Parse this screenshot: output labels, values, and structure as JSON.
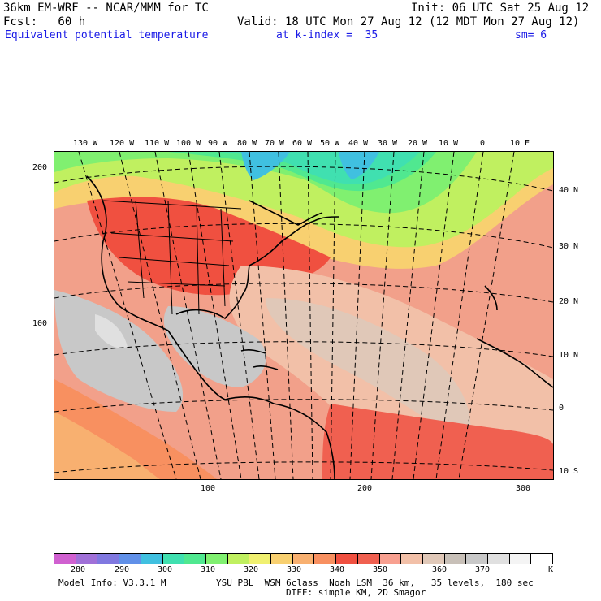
{
  "header": {
    "model_line": "36km EM-WRF -- NCAR/MMM for TC",
    "init_line": "Init: 06 UTC Sat 25 Aug 12",
    "fcst_line": "Fcst:   60 h",
    "valid_line": "Valid: 18 UTC Mon 27 Aug 12 (12 MDT Mon 27 Aug 12)",
    "field_name": "Equivalent potential temperature",
    "kindex_label": "at k-index =  35",
    "smooth_label": "sm= 6"
  },
  "map": {
    "top_lon_labels": [
      "130 W",
      "120 W",
      "110 W",
      "100 W",
      "90 W",
      "80 W",
      "70 W",
      "60 W",
      "50 W",
      "40 W",
      "30 W",
      "20 W",
      "10 W",
      "0",
      "10 E"
    ],
    "right_lat_labels": [
      "40 N",
      "30 N",
      "20 N",
      "10 N",
      "0",
      "10 S"
    ],
    "left_grid_labels": [
      "200",
      "100"
    ],
    "bottom_grid_labels": [
      "100",
      "200",
      "300"
    ]
  },
  "colorbar": {
    "colors": [
      "#d060d0",
      "#a070d8",
      "#8078e0",
      "#6090e8",
      "#40c0e0",
      "#40e0b0",
      "#50e890",
      "#80f070",
      "#c0f060",
      "#f0f070",
      "#f8d070",
      "#f8b070",
      "#f89060",
      "#f05040",
      "#f06050",
      "#f8a090",
      "#f2c0a8",
      "#e0c8b8",
      "#c8c0b8",
      "#c8c8c8",
      "#e0e0e0",
      "#f4f4f4",
      "#ffffff"
    ],
    "tick_labels": [
      "280",
      "290",
      "300",
      "310",
      "320",
      "330",
      "340",
      "350",
      "360",
      "370"
    ],
    "unit": "K"
  },
  "footer": {
    "model_info": "Model Info: V3.3.1 M",
    "physics": "YSU PBL  WSM 6class  Noah LSM  36 km,   35 levels,  180 sec",
    "diffusion": "DIFF: simple KM, 2D Smagor"
  }
}
